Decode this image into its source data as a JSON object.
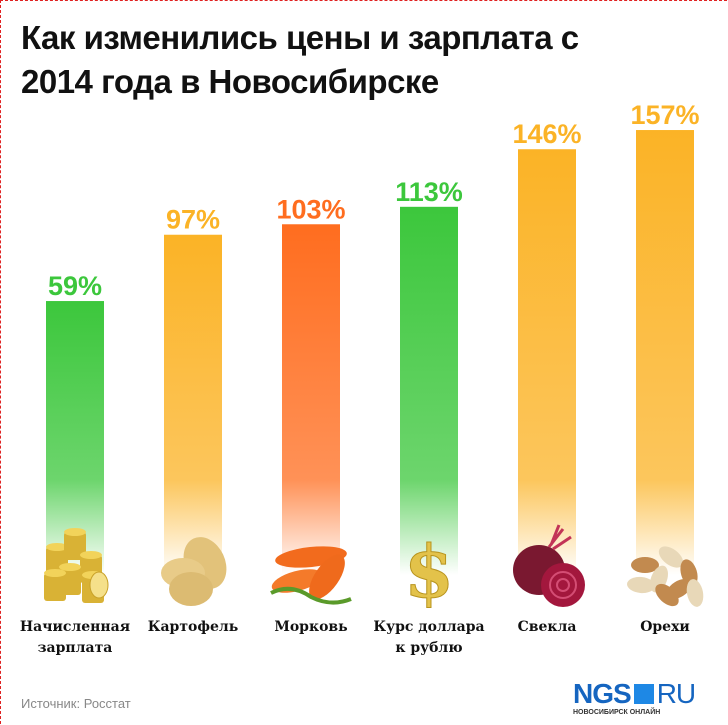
{
  "chart_data": {
    "type": "bar",
    "title": "Как изменились цены и зарплата с 2014 года в Новосибирске",
    "categories": [
      "Начисленная зарплата",
      "Картофель",
      "Морковь",
      "Курс доллара к рублю",
      "Свекла",
      "Орехи"
    ],
    "category_lines": [
      [
        "Начисленная",
        "зарплата"
      ],
      [
        "Картофель"
      ],
      [
        "Морковь"
      ],
      [
        "Курс доллара",
        "к рублю"
      ],
      [
        "Свекла"
      ],
      [
        "Орехи"
      ]
    ],
    "values": [
      59,
      97,
      103,
      113,
      146,
      157
    ],
    "value_labels": [
      "59%",
      "97%",
      "103%",
      "113%",
      "146%",
      "157%"
    ],
    "colors": [
      "#3cc73c",
      "#fbb326",
      "#ff6d1f",
      "#3cc73c",
      "#fbb326",
      "#fbb326"
    ],
    "icons": [
      "gold-coins-icon",
      "potato-icon",
      "carrot-icon",
      "dollar-sign-icon",
      "beet-icon",
      "nuts-icon"
    ],
    "unit": "%",
    "xlabel": "",
    "ylabel": "",
    "ylim": [
      0,
      160
    ],
    "grid": false,
    "legend": "none"
  },
  "footer": {
    "source": "Источник: Росстат",
    "logo_left": "NGS",
    "logo_right": "RU",
    "logo_sub": "НОВОСИБИРСК ОНЛАЙН"
  }
}
